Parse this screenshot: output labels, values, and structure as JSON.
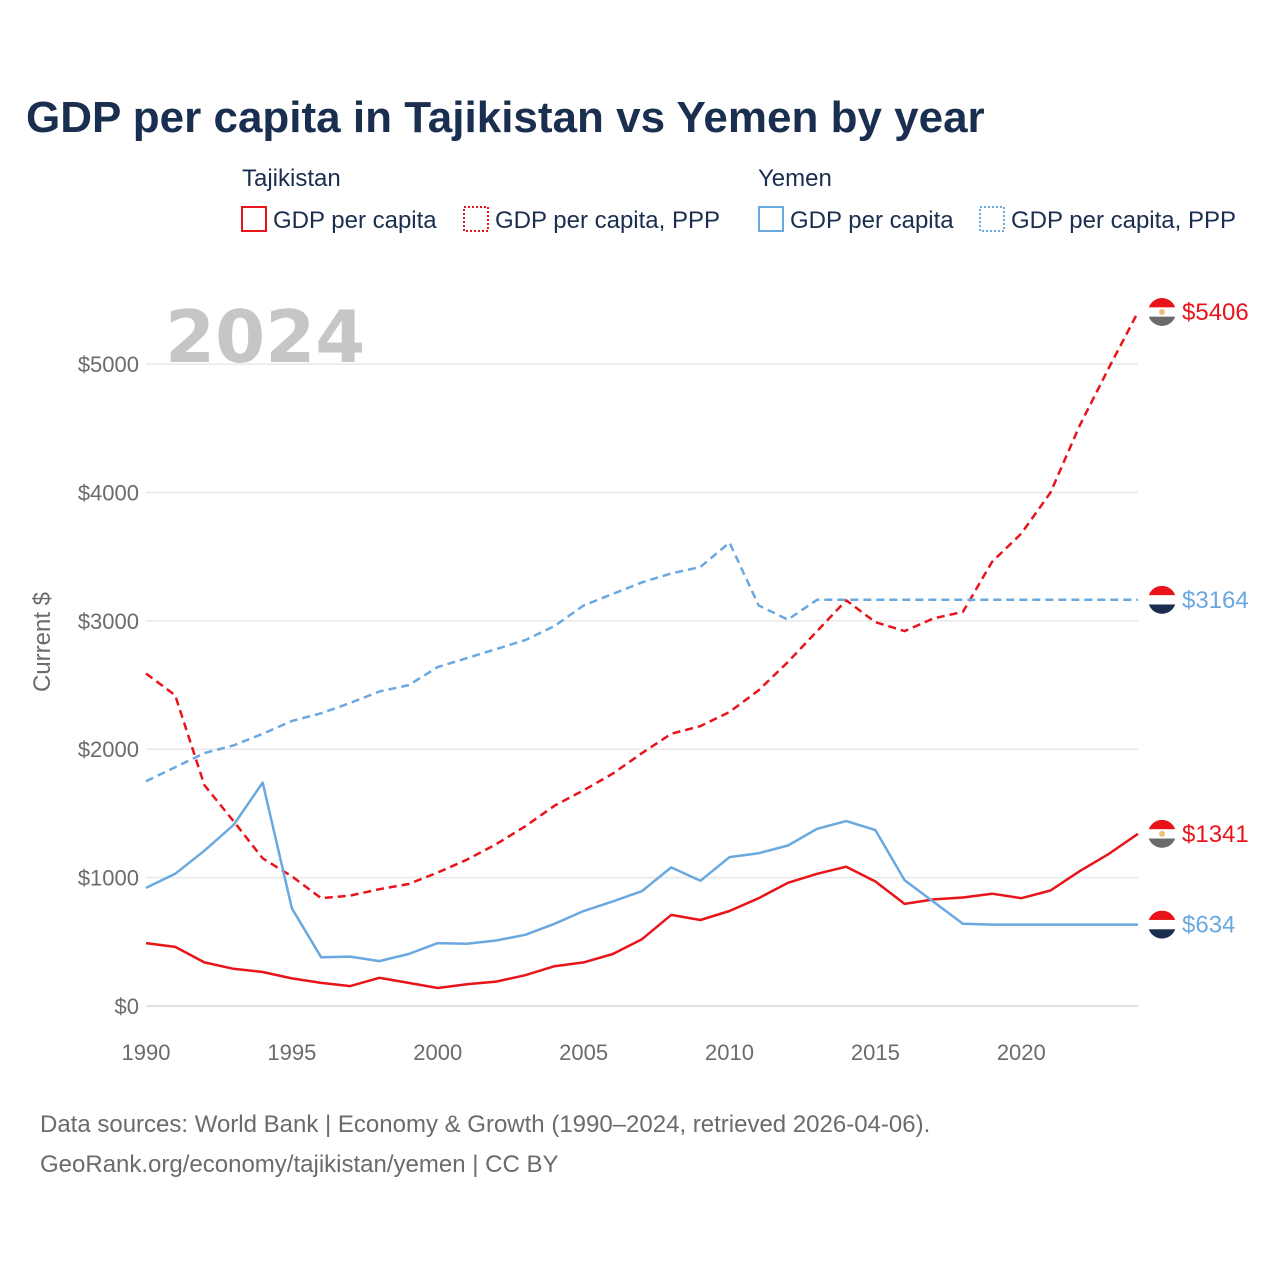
{
  "title": "GDP per capita in Tajikistan vs Yemen by year",
  "legend": {
    "groups": [
      {
        "name": "Tajikistan",
        "items": [
          "GDP per capita",
          "GDP per capita, PPP"
        ]
      },
      {
        "name": "Yemen",
        "items": [
          "GDP per capita",
          "GDP per capita, PPP"
        ]
      }
    ]
  },
  "year_label": "2024",
  "colors": {
    "tajikistan": "#e8141a",
    "yemen": "#6aa8e0",
    "grid": "#e8e8e8",
    "text": "#1a2e4f",
    "muted": "#6b6b6b"
  },
  "end_labels": {
    "tj_ppp": "$5406",
    "ye_ppp": "$3164",
    "tj_gdp": "$1341",
    "ye_gdp": "$634"
  },
  "source": {
    "line1": "Data sources: World Bank | Economy & Growth (1990–2024, retrieved 2026-04-06).",
    "line2": "GeoRank.org/economy/tajikistan/yemen | CC BY"
  },
  "chart_data": {
    "type": "line",
    "title": "GDP per capita in Tajikistan vs Yemen by year",
    "xlabel": "",
    "ylabel": "Current $",
    "xlim": [
      1990,
      2024
    ],
    "ylim": [
      0,
      5400
    ],
    "x_ticks": [
      1990,
      1995,
      2000,
      2005,
      2010,
      2015,
      2020
    ],
    "y_ticks": [
      0,
      1000,
      2000,
      3000,
      4000,
      5000
    ],
    "y_tick_labels": [
      "$0",
      "$1000",
      "$2000",
      "$3000",
      "$4000",
      "$5000"
    ],
    "x_tick_labels": [
      "1990",
      "1995",
      "2000",
      "2005",
      "2010",
      "2015",
      "2020"
    ],
    "x": [
      1990,
      1991,
      1992,
      1993,
      1994,
      1995,
      1996,
      1997,
      1998,
      1999,
      2000,
      2001,
      2002,
      2003,
      2004,
      2005,
      2006,
      2007,
      2008,
      2009,
      2010,
      2011,
      2012,
      2013,
      2014,
      2015,
      2016,
      2017,
      2018,
      2019,
      2020,
      2021,
      2022,
      2023,
      2024
    ],
    "series": [
      {
        "name": "Tajikistan GDP per capita",
        "country": "Tajikistan",
        "style": "solid",
        "values": [
          490,
          460,
          340,
          290,
          265,
          215,
          180,
          155,
          220,
          180,
          140,
          170,
          190,
          240,
          310,
          340,
          405,
          520,
          710,
          670,
          740,
          840,
          960,
          1030,
          1085,
          970,
          795,
          830,
          845,
          875,
          840,
          900,
          1050,
          1185,
          1341
        ]
      },
      {
        "name": "Tajikistan GDP per capita, PPP",
        "country": "Tajikistan",
        "style": "dashed",
        "values": [
          2590,
          2420,
          1720,
          1440,
          1150,
          1010,
          840,
          860,
          910,
          950,
          1040,
          1140,
          1260,
          1400,
          1560,
          1680,
          1810,
          1970,
          2120,
          2180,
          2290,
          2460,
          2680,
          2920,
          3160,
          2990,
          2920,
          3020,
          3070,
          3460,
          3680,
          4000,
          4520,
          4970,
          5406
        ]
      },
      {
        "name": "Yemen GDP per capita",
        "country": "Yemen",
        "style": "solid",
        "values": [
          920,
          1030,
          1210,
          1410,
          1740,
          760,
          380,
          385,
          350,
          405,
          490,
          485,
          510,
          555,
          640,
          740,
          815,
          895,
          1080,
          975,
          1160,
          1190,
          1250,
          1380,
          1440,
          1370,
          980,
          810,
          640,
          634,
          634,
          634,
          634,
          634,
          634
        ]
      },
      {
        "name": "Yemen GDP per capita, PPP",
        "country": "Yemen",
        "style": "dashed",
        "values": [
          1750,
          1860,
          1970,
          2030,
          2120,
          2220,
          2280,
          2360,
          2450,
          2500,
          2640,
          2710,
          2780,
          2850,
          2960,
          3120,
          3210,
          3300,
          3370,
          3420,
          3610,
          3120,
          3010,
          3164,
          3164,
          3164,
          3164,
          3164,
          3164,
          3164,
          3164,
          3164,
          3164,
          3164,
          3164
        ]
      }
    ]
  }
}
